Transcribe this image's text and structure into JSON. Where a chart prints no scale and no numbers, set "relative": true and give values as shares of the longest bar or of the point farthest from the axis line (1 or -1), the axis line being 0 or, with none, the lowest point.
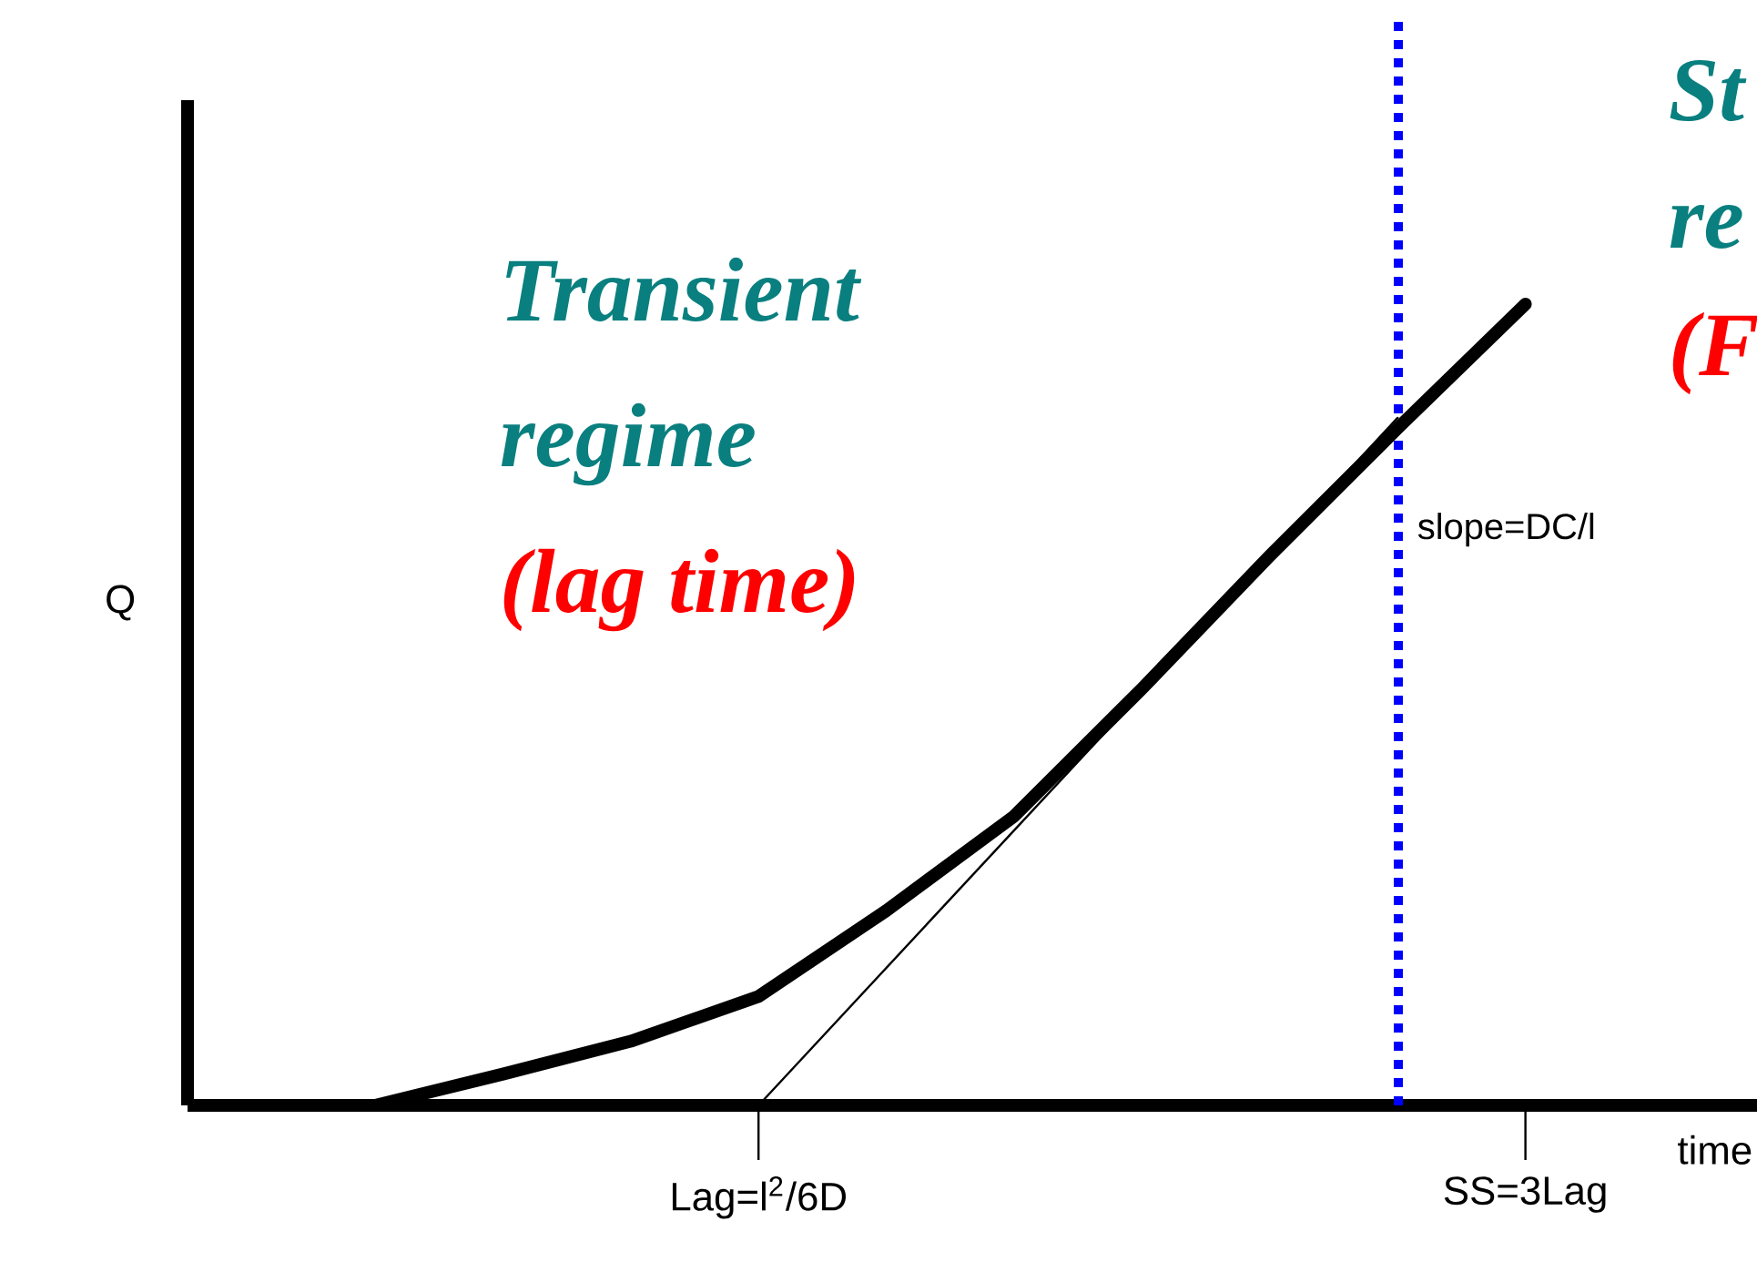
{
  "chart_data": {
    "type": "line",
    "relative": true,
    "xlabel": "time",
    "ylabel": "Q",
    "tick_labels": "x",
    "categories": [
      null,
      null,
      null,
      "Lag=l$^{2}$/6D",
      null,
      null,
      null,
      null,
      null,
      "SS=3Lag"
    ],
    "series": [
      {
        "values": [
          0,
          0.039,
          0.08,
          0.136,
          0.243,
          0.361,
          0.52,
          0.686,
          0.845,
          1.0
        ],
        "color": "#000000"
      },
      {
        "type": "line",
        "values": [
          null,
          null,
          null,
          0,
          null,
          null,
          null,
          null,
          0.858,
          null
        ],
        "color": "#000000"
      }
    ],
    "annotations": [
      "Transient",
      "regime",
      "(lag time)",
      "St",
      "re",
      "(F",
      "slope=DC/l"
    ]
  }
}
